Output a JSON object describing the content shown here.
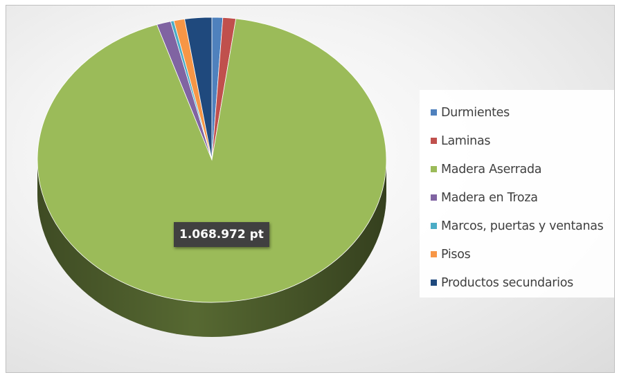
{
  "chart_data": {
    "type": "pie",
    "categories": [
      "Durmientes",
      "Laminas",
      "Madera Aserrada",
      "Madera en Troza",
      "Marcos, puertas y ventanas",
      "Pisos",
      "Productos secundarios"
    ],
    "values": [
      1.0,
      1.2,
      92.7,
      1.3,
      0.3,
      1.0,
      2.5
    ],
    "colors": [
      "#4f81bd",
      "#c0504d",
      "#9bbb59",
      "#8064a2",
      "#4bacc6",
      "#f79646",
      "#1f497d"
    ],
    "legend_position": "right",
    "style": "3d",
    "data_labels": [
      {
        "category": "Madera Aserrada",
        "text": "1.068.972 pt"
      }
    ]
  }
}
